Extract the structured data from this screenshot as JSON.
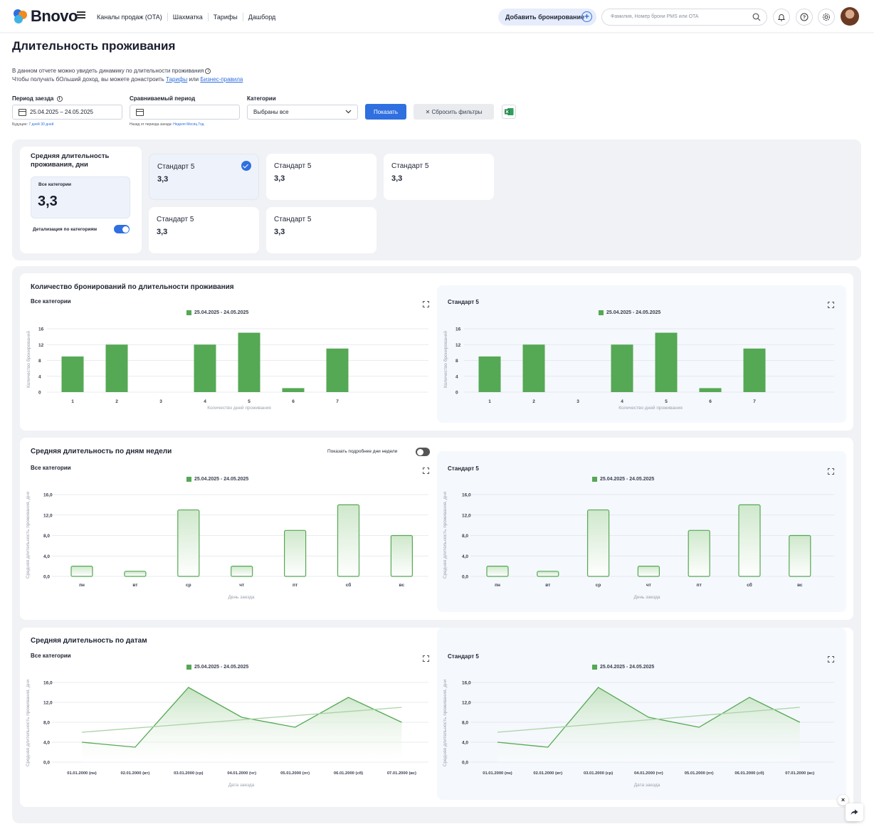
{
  "header": {
    "logo_text": "Bnovo",
    "nav": [
      "Каналы продаж (OTA)",
      "Шахматка",
      "Тарифы",
      "Дашборд"
    ],
    "add_booking": "Добавить бронирование",
    "search_placeholder": "Фамилия, Номер брони PMS или OTA"
  },
  "page": {
    "title": "Длительность проживания",
    "desc_line1": "В данном отчете можно увидеть динамику по длительности проживания",
    "desc_line2_prefix": "Чтобы получать бОльший доход, вы можете донастроить",
    "desc_link1": "Тарифы",
    "desc_or": "или",
    "desc_link2": "Бизнес-правила"
  },
  "filters": {
    "period_label": "Период заезда",
    "period_value": "25.04.2025 – 24.05.2025",
    "period_hint_prefix": "Будущие:",
    "period_hint_links": "7 дней  30 дней",
    "compare_label": "Сравниваемый период",
    "compare_value": "",
    "compare_hint_prefix": "Назад от периода заезда:",
    "compare_hint_links": "Неделя  Месяц  Год",
    "categories_label": "Категории",
    "categories_value": "Выбраны все",
    "show_button": "Показать",
    "reset_button": "✕ Сбросить фильтры"
  },
  "kpi": {
    "title": "Средняя длительность проживания, дни",
    "all_label": "Все категории",
    "all_value": "3,3",
    "detail_label": "Детализация по категориям",
    "detail_on": true,
    "cards": [
      {
        "name": "Стандарт 5",
        "value": "3,3",
        "selected": true
      },
      {
        "name": "Стандарт 5",
        "value": "3,3",
        "selected": false
      },
      {
        "name": "Стандарт 5",
        "value": "3,3",
        "selected": false
      },
      {
        "name": "Стандарт 5",
        "value": "3,3",
        "selected": false
      },
      {
        "name": "Стандарт 5",
        "value": "3,3",
        "selected": false
      }
    ]
  },
  "sections": {
    "bookings_title": "Количество бронирований по длительности проживания",
    "weekday_title": "Средняя длительность по дням недели",
    "weekday_toggle_label": "Показать подробнее дни недели",
    "dates_title": "Средняя длительность по датам",
    "left_subtitle": "Все категории",
    "right_subtitle": "Стандарт 5",
    "legend": "25.04.2025 - 24.05.2025"
  },
  "colors": {
    "accent": "#2f6fe0",
    "series": "#55a854",
    "trend": "#a9d3a4"
  },
  "chart_data": [
    {
      "type": "bar",
      "title": "Количество бронирований по длительности проживания",
      "subtitle": "Все категории",
      "categories": [
        "1",
        "2",
        "3",
        "4",
        "5",
        "6",
        "7"
      ],
      "series": [
        {
          "name": "25.04.2025 - 24.05.2025",
          "values": [
            9,
            12,
            0,
            12,
            15,
            1,
            11
          ]
        }
      ],
      "xlabel": "Количество дней проживания",
      "ylabel": "Количество бронирований",
      "yticks": [
        "0",
        "4",
        "8",
        "12",
        "16"
      ],
      "ylim": [
        0,
        16
      ],
      "grid": true,
      "legend": "top-center"
    },
    {
      "type": "bar",
      "subtitle": "Стандарт 5",
      "categories": [
        "1",
        "2",
        "3",
        "4",
        "5",
        "6",
        "7"
      ],
      "series": [
        {
          "name": "25.04.2025 - 24.05.2025",
          "values": [
            9,
            12,
            0,
            12,
            15,
            1,
            11
          ]
        }
      ],
      "xlabel": "Количество дней проживания",
      "ylabel": "Количество бронирований",
      "yticks": [
        "0",
        "4",
        "8",
        "12",
        "16"
      ],
      "ylim": [
        0,
        16
      ],
      "grid": true,
      "legend": "top-center"
    },
    {
      "type": "bar",
      "title": "Средняя длительность по дням недели",
      "subtitle": "Все категории",
      "categories": [
        "пн",
        "вт",
        "ср",
        "чт",
        "пт",
        "сб",
        "вс"
      ],
      "series": [
        {
          "name": "25.04.2025 - 24.05.2025",
          "values": [
            2,
            1,
            13,
            2,
            9,
            14,
            8
          ]
        }
      ],
      "xlabel": "День заезда",
      "ylabel": "Средняя длительность проживания, дни",
      "yticks": [
        "0,0",
        "4,0",
        "8,0",
        "12,0",
        "16,0"
      ],
      "ylim": [
        0,
        16
      ],
      "grid": true,
      "legend": "top-center"
    },
    {
      "type": "bar",
      "subtitle": "Стандарт 5",
      "categories": [
        "пн",
        "вт",
        "ср",
        "чт",
        "пт",
        "сб",
        "вс"
      ],
      "series": [
        {
          "name": "25.04.2025 - 24.05.2025",
          "values": [
            2,
            1,
            13,
            2,
            9,
            14,
            8
          ]
        }
      ],
      "xlabel": "День заезда",
      "ylabel": "Средняя длительность проживания, дни",
      "yticks": [
        "0,0",
        "4,0",
        "8,0",
        "12,0",
        "16,0"
      ],
      "ylim": [
        0,
        16
      ],
      "grid": true,
      "legend": "top-center"
    },
    {
      "type": "area",
      "title": "Средняя длительность по датам",
      "subtitle": "Все категории",
      "categories": [
        "01.01.2000 (пн)",
        "02.01.2000 (вт)",
        "03.01.2000 (ср)",
        "04.01.2000 (чт)",
        "05.01.2000 (пт)",
        "06.01.2000 (сб)",
        "07.01.2000 (вс)"
      ],
      "series": [
        {
          "name": "25.04.2025 - 24.05.2025",
          "values": [
            4,
            3,
            15,
            9,
            7,
            13,
            8
          ]
        }
      ],
      "trend": [
        6,
        11
      ],
      "xlabel": "Дата заезда",
      "ylabel": "Средняя длительность проживания, дни",
      "yticks": [
        "0,0",
        "4,0",
        "8,0",
        "12,0",
        "16,0"
      ],
      "ylim": [
        0,
        16
      ],
      "grid": true,
      "legend": "top-center"
    },
    {
      "type": "area",
      "subtitle": "Стандарт 5",
      "categories": [
        "01.01.2000 (пн)",
        "02.01.2000 (вт)",
        "03.01.2000 (ср)",
        "04.01.2000 (чт)",
        "05.01.2000 (пт)",
        "06.01.2000 (сб)",
        "07.01.2000 (вс)"
      ],
      "series": [
        {
          "name": "25.04.2025 - 24.05.2025",
          "values": [
            4,
            3,
            15,
            9,
            7,
            13,
            8
          ]
        }
      ],
      "trend": [
        6,
        11
      ],
      "xlabel": "Дата заезда",
      "ylabel": "Средняя длительность проживания, дни",
      "yticks": [
        "0,0",
        "4,0",
        "8,0",
        "12,0",
        "16,0"
      ],
      "ylim": [
        0,
        16
      ],
      "grid": true,
      "legend": "top-center"
    }
  ]
}
